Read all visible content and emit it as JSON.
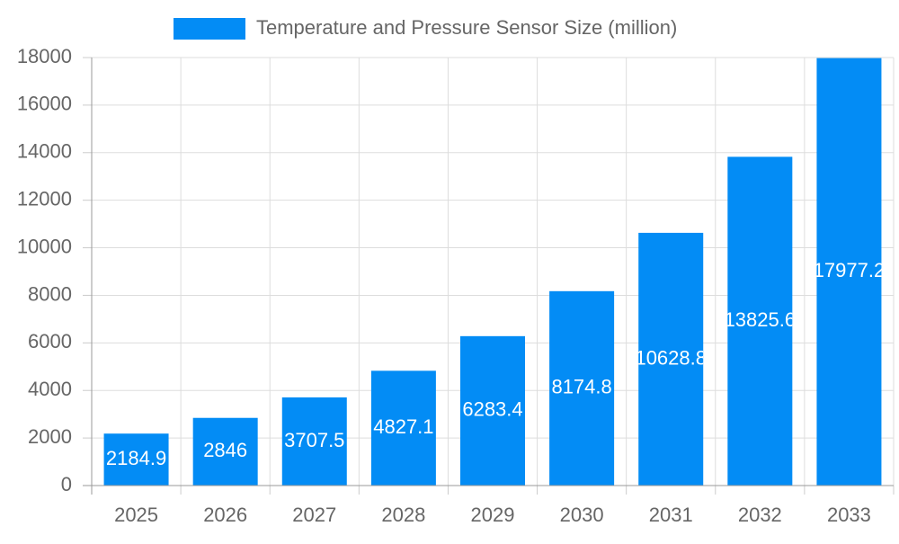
{
  "chart_data": {
    "type": "bar",
    "categories": [
      "2025",
      "2026",
      "2027",
      "2028",
      "2029",
      "2030",
      "2031",
      "2032",
      "2033"
    ],
    "series": [
      {
        "name": "Temperature and Pressure Sensor Size (million)",
        "color": "#038cf5",
        "values": [
          2184.9,
          2846,
          3707.5,
          4827.1,
          6283.4,
          8174.8,
          10628.8,
          13825.6,
          17977.2
        ]
      }
    ],
    "ylim": [
      0,
      18000
    ],
    "yticks": [
      0,
      2000,
      4000,
      6000,
      8000,
      10000,
      12000,
      14000,
      16000,
      18000
    ],
    "grid": true,
    "legend": "top"
  }
}
